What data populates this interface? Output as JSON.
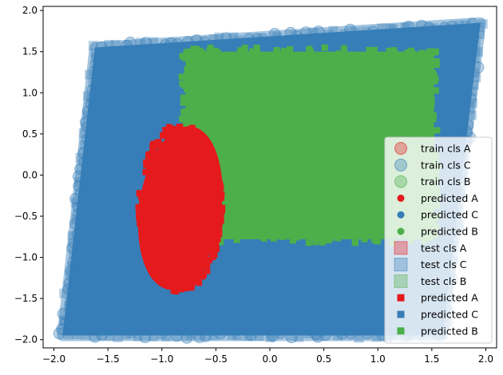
{
  "chart_data": {
    "type": "scatter",
    "title": "",
    "xlabel": "",
    "ylabel": "",
    "xlim": [
      -2.1,
      2.1
    ],
    "ylim": [
      -2.1,
      2.05
    ],
    "xticks": [
      "−2.0",
      "−1.5",
      "−1.0",
      "−0.5",
      "0.0",
      "0.5",
      "1.0",
      "1.5",
      "2.0"
    ],
    "yticks": [
      "−2.0",
      "−1.5",
      "−1.0",
      "−0.5",
      "0.0",
      "0.5",
      "1.0",
      "1.5",
      "2.0"
    ],
    "grid": false,
    "legend_position": "lower right",
    "colors": {
      "A": "#e41a1c",
      "B": "#4daf4a",
      "C": "#377eb8"
    },
    "regions": {
      "C": {
        "description": "parallelogram",
        "corners": [
          [
            -1.92,
            -1.95
          ],
          [
            1.6,
            -1.95
          ],
          [
            1.95,
            1.85
          ],
          [
            -1.62,
            1.55
          ]
        ]
      },
      "B": {
        "x_range": [
          -0.78,
          1.52
        ],
        "y_range": [
          -0.78,
          1.5
        ]
      },
      "A": {
        "center": [
          -0.83,
          -0.4
        ],
        "half_width": 0.38,
        "half_height": 1.0
      }
    },
    "series": [
      {
        "name": "train cls A",
        "marker": "circle",
        "color": "#e41a1c",
        "alpha": 0.35
      },
      {
        "name": "train cls C",
        "marker": "circle",
        "color": "#377eb8",
        "alpha": 0.35
      },
      {
        "name": "train cls B",
        "marker": "circle",
        "color": "#4daf4a",
        "alpha": 0.35
      },
      {
        "name": "predicted A",
        "marker": "dot",
        "color": "#e41a1c",
        "alpha": 1
      },
      {
        "name": "predicted C",
        "marker": "dot",
        "color": "#377eb8",
        "alpha": 1
      },
      {
        "name": "predicted B",
        "marker": "dot",
        "color": "#4daf4a",
        "alpha": 1
      },
      {
        "name": "test cls A",
        "marker": "square",
        "color": "#e41a1c",
        "alpha": 0.35
      },
      {
        "name": "test cls C",
        "marker": "square",
        "color": "#377eb8",
        "alpha": 0.35
      },
      {
        "name": "test cls B",
        "marker": "square",
        "color": "#4daf4a",
        "alpha": 0.35
      },
      {
        "name": "predicted A",
        "marker": "small-square",
        "color": "#e41a1c",
        "alpha": 1
      },
      {
        "name": "predicted C",
        "marker": "small-square",
        "color": "#377eb8",
        "alpha": 1
      },
      {
        "name": "predicted B",
        "marker": "small-square",
        "color": "#4daf4a",
        "alpha": 1
      }
    ]
  }
}
